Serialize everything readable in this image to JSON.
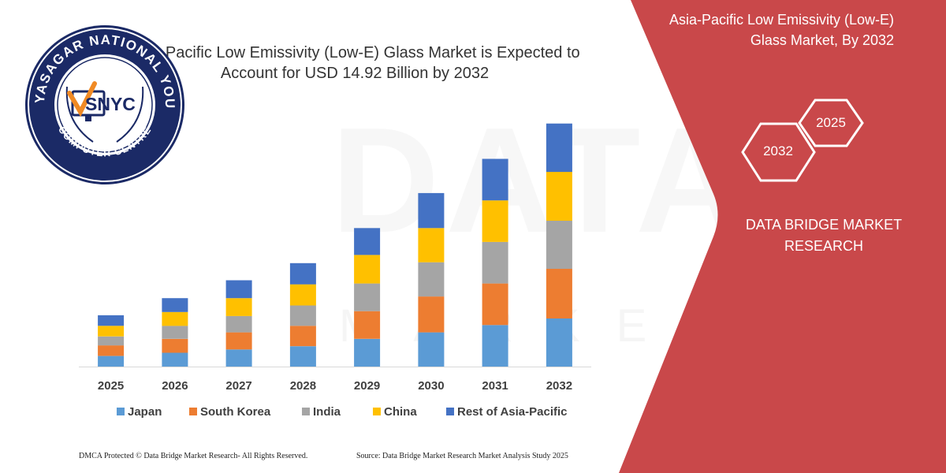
{
  "chart_data": {
    "type": "bar",
    "stacked": true,
    "title": "Asia-Pacific Low Emissivity (Low-E) Glass Market is Expected to Account for USD 14.92 Billion by 2032",
    "categories": [
      "2025",
      "2026",
      "2027",
      "2028",
      "2029",
      "2030",
      "2031",
      "2032"
    ],
    "series": [
      {
        "name": "Japan",
        "color": "#5b9bd5",
        "values": [
          0.65,
          0.85,
          1.05,
          1.25,
          1.7,
          2.1,
          2.55,
          2.95
        ]
      },
      {
        "name": "South Korea",
        "color": "#ed7d31",
        "values": [
          0.65,
          0.85,
          1.05,
          1.25,
          1.7,
          2.2,
          2.55,
          3.05
        ]
      },
      {
        "name": "India",
        "color": "#a5a5a5",
        "values": [
          0.55,
          0.8,
          1.0,
          1.25,
          1.7,
          2.1,
          2.55,
          2.95
        ]
      },
      {
        "name": "China",
        "color": "#ffc000",
        "values": [
          0.65,
          0.85,
          1.1,
          1.3,
          1.75,
          2.1,
          2.55,
          3.0
        ]
      },
      {
        "name": "Rest of Asia-Pacific",
        "color": "#4472c4",
        "values": [
          0.65,
          0.85,
          1.1,
          1.3,
          1.65,
          2.15,
          2.55,
          2.97
        ]
      }
    ],
    "xlabel": "",
    "ylabel": "",
    "ylim": [
      0,
      15
    ],
    "grid": false,
    "legend": "bottom"
  },
  "panel": {
    "title": "Asia-Pacific Low Emissivity (Low-E) Glass Market, By 2032",
    "hex_year_a": "2025",
    "hex_year_b": "2032",
    "company": "DATA BRIDGE MARKET RESEARCH",
    "background": "#c9484a"
  },
  "footer": {
    "left": "DMCA Protected © Data Bridge Market Research-  All Rights Reserved.",
    "right": "Source: Data Bridge Market Research  Market Analysis Study 2025"
  },
  "logo": {
    "ring_text_top": "VIDYASAGAR NATIONAL YOUTH",
    "ring_text_bottom": "COMPUTER CENTRE",
    "badge": "SNYC"
  },
  "watermark": {
    "main": "DATA BRIDGE",
    "sub": "MARKET RESEARCH"
  }
}
